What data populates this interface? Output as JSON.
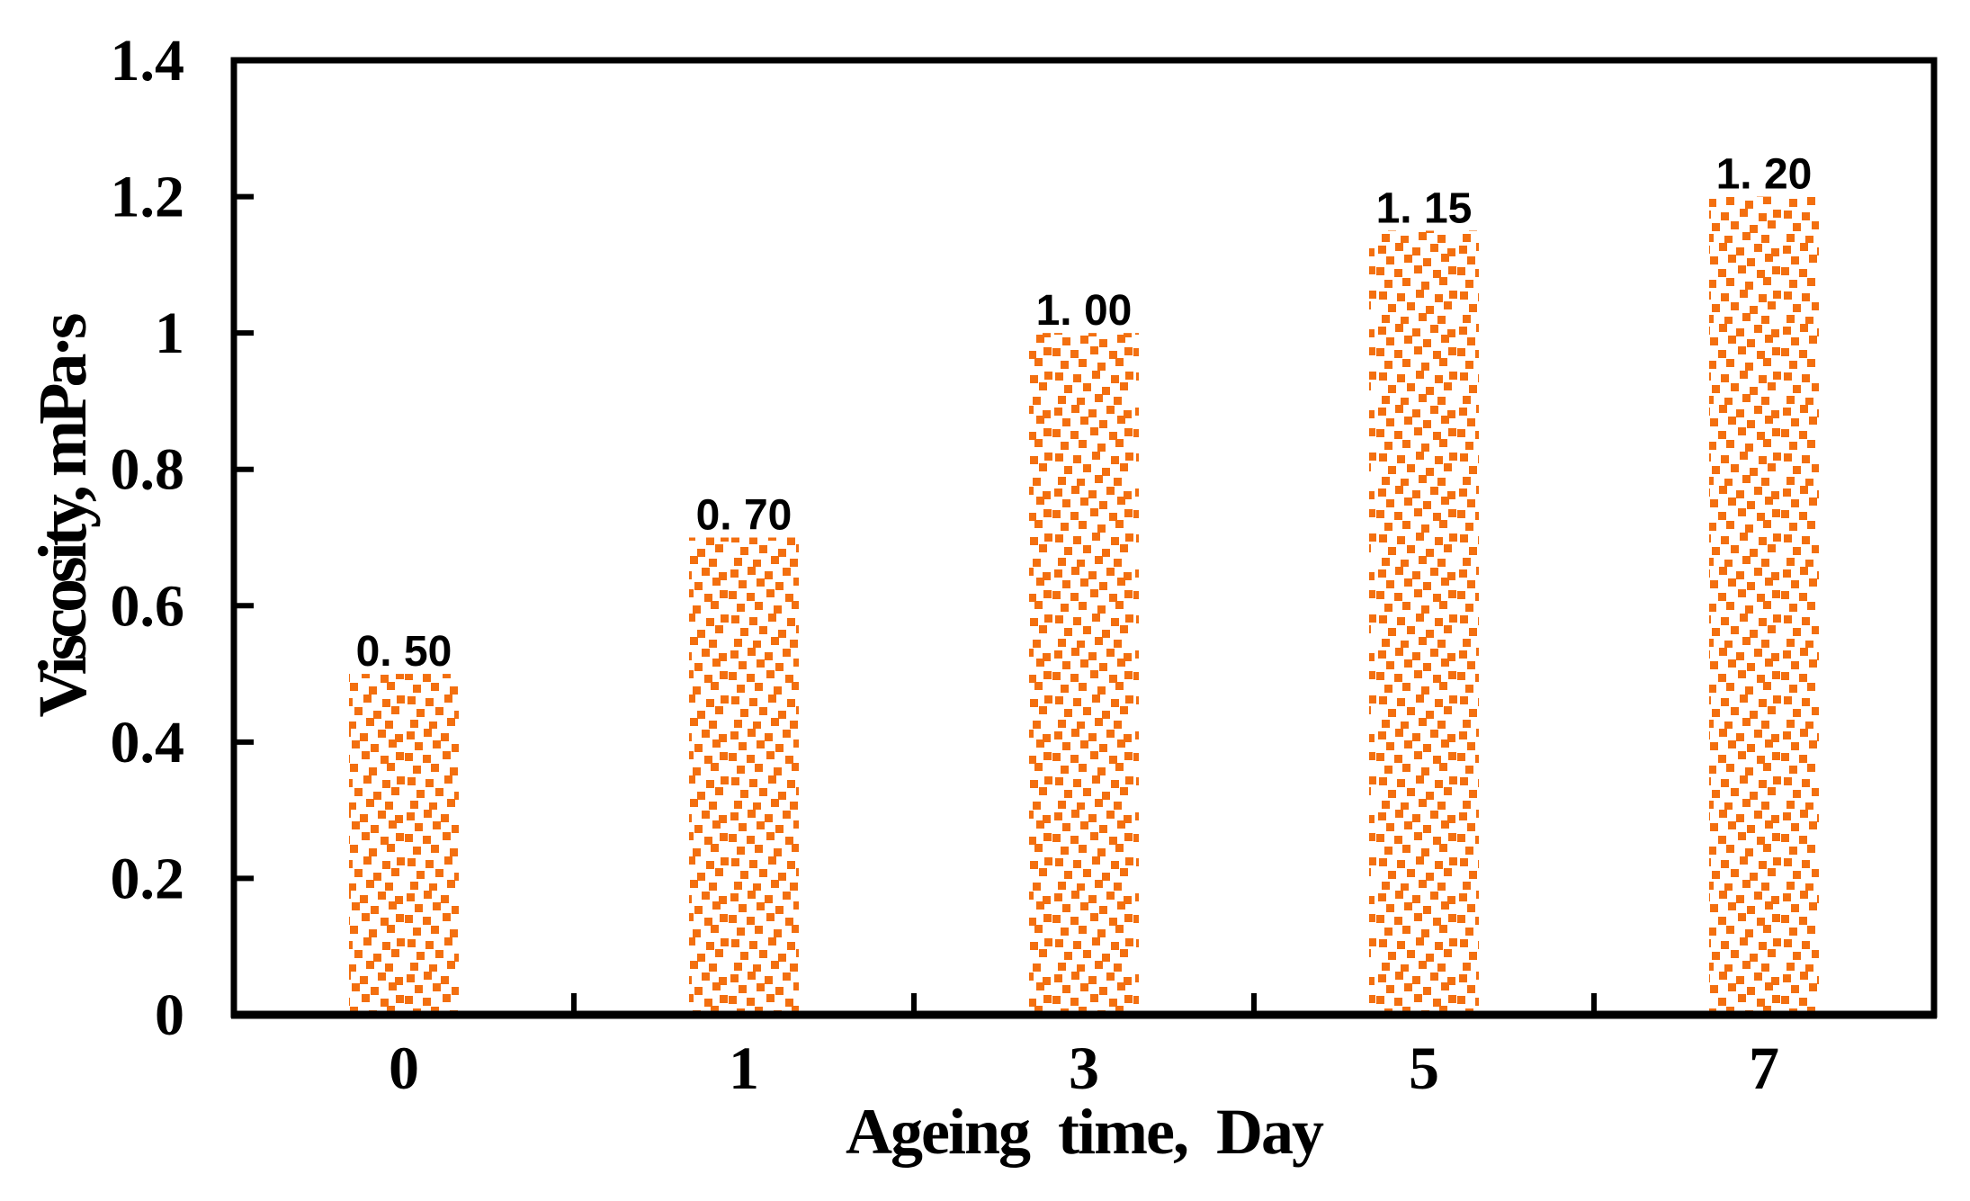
{
  "figure": {
    "background_color": "#FFFFFF",
    "axis_color": "#000000",
    "text_color": "#000000",
    "bar_fill_color": "#F36F0F",
    "bar_fill_style": "stipple-dots"
  },
  "chart_data": {
    "type": "bar",
    "title": "",
    "categories": [
      "0",
      "1",
      "3",
      "5",
      "7"
    ],
    "values": [
      0.5,
      0.7,
      1.0,
      1.15,
      1.2
    ],
    "bar_labels": [
      "0. 50",
      "0. 70",
      "1. 00",
      "1. 15",
      "1. 20"
    ],
    "xlabel": "Ageing time, Day",
    "ylabel": "Viscosity, mPa·s",
    "ylim": [
      0,
      1.4
    ],
    "ytick_interval": 0.2,
    "yticks": [
      {
        "value": 0,
        "label": "0"
      },
      {
        "value": 0.2,
        "label": "0.2"
      },
      {
        "value": 0.4,
        "label": "0.4"
      },
      {
        "value": 0.6,
        "label": "0.6"
      },
      {
        "value": 0.8,
        "label": "0.8"
      },
      {
        "value": 1,
        "label": "1"
      },
      {
        "value": 1.2,
        "label": "1.2"
      },
      {
        "value": 1.4,
        "label": "1.4"
      }
    ],
    "grid": false,
    "legend": "none",
    "plot_border": "box",
    "xtick_style": "boundary-ticks-inside",
    "ytick_style": "ticks-inside"
  }
}
